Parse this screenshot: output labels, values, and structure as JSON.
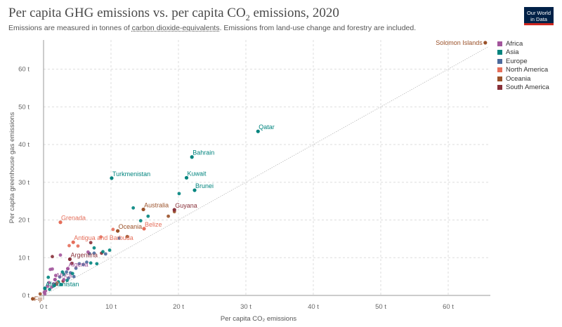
{
  "header": {
    "title_main": "Per capita GHG emissions vs. per capita CO",
    "title_sub": "2",
    "title_tail": " emissions, 2020",
    "subtitle_pre": "Emissions are measured in tonnes of ",
    "subtitle_link": "carbon dioxide-equivalents",
    "subtitle_post": ". Emissions from land-use change and forestry are included.",
    "logo_line1": "Our World",
    "logo_line2": "in Data"
  },
  "colors": {
    "Africa": "#a2559c",
    "Asia": "#00847e",
    "Europe": "#4c6a9c",
    "North America": "#e56e5a",
    "Oceania": "#9a5129",
    "South America": "#883039"
  },
  "legend": [
    "Africa",
    "Asia",
    "Europe",
    "North America",
    "Oceania",
    "South America"
  ],
  "chart_data": {
    "type": "scatter",
    "title": "Per capita GHG emissions vs. per capita CO₂ emissions, 2020",
    "xlabel": "Per capita CO₂ emissions",
    "ylabel": "Per capita greenhouse gas emissions",
    "xlim": [
      0,
      66
    ],
    "ylim": [
      0,
      67
    ],
    "xticks": [
      0,
      10,
      20,
      30,
      40,
      50,
      60
    ],
    "yticks": [
      0,
      10,
      20,
      30,
      40,
      50,
      60
    ],
    "tick_suffix": " t",
    "reference_line": "y = x",
    "labeled_points": [
      {
        "name": "Solomon Islands",
        "region": "Oceania",
        "x": 65.5,
        "y": 67.0
      },
      {
        "name": "Qatar",
        "region": "Asia",
        "x": 31.8,
        "y": 43.5
      },
      {
        "name": "Bahrain",
        "region": "Asia",
        "x": 22.0,
        "y": 36.7
      },
      {
        "name": "Turkmenistan",
        "region": "Asia",
        "x": 10.1,
        "y": 31.1
      },
      {
        "name": "Kuwait",
        "region": "Asia",
        "x": 21.2,
        "y": 31.2
      },
      {
        "name": "Brunei",
        "region": "Asia",
        "x": 22.4,
        "y": 27.9
      },
      {
        "name": "Australia",
        "region": "Oceania",
        "x": 14.8,
        "y": 22.8
      },
      {
        "name": "Guyana",
        "region": "South America",
        "x": 19.4,
        "y": 22.7
      },
      {
        "name": "Grenada",
        "region": "North America",
        "x": 2.5,
        "y": 19.4
      },
      {
        "name": "Belize",
        "region": "North America",
        "x": 14.9,
        "y": 17.7
      },
      {
        "name": "Oceania",
        "region": "Oceania",
        "x": 11.0,
        "y": 17.1
      },
      {
        "name": "Antigua and Barbuda",
        "region": "North America",
        "x": 4.4,
        "y": 14.1
      },
      {
        "name": "Argentina",
        "region": "South America",
        "x": 3.9,
        "y": 9.6
      },
      {
        "name": "Algeria",
        "region": "Africa",
        "x": 3.6,
        "y": 7.1
      },
      {
        "name": "Africa",
        "region": "Africa",
        "x": 1.7,
        "y": 4.2
      },
      {
        "name": "Afghanistan",
        "region": "Asia",
        "x": 0.2,
        "y": 1.9
      },
      {
        "name": "Fiji",
        "region": "Oceania",
        "x": -1.6,
        "y": -0.9
      }
    ],
    "points": [
      {
        "region": "Asia",
        "x": 20.1,
        "y": 27.0
      },
      {
        "region": "Asia",
        "x": 13.3,
        "y": 23.2
      },
      {
        "region": "Asia",
        "x": 15.5,
        "y": 21.0
      },
      {
        "region": "Asia",
        "x": 14.4,
        "y": 19.8
      },
      {
        "region": "Oceania",
        "x": 18.5,
        "y": 21.0
      },
      {
        "region": "Oceania",
        "x": 19.4,
        "y": 22.2
      },
      {
        "region": "Oceania",
        "x": 12.4,
        "y": 15.6
      },
      {
        "region": "North America",
        "x": 10.3,
        "y": 17.5
      },
      {
        "region": "Europe",
        "x": 11.2,
        "y": 15.2
      },
      {
        "region": "Asia",
        "x": 9.8,
        "y": 12.0
      },
      {
        "region": "Asia",
        "x": 7.5,
        "y": 12.6
      },
      {
        "region": "Europe",
        "x": 7.5,
        "y": 11.2
      },
      {
        "region": "South America",
        "x": 8.6,
        "y": 11.2
      },
      {
        "region": "Asia",
        "x": 8.8,
        "y": 11.6
      },
      {
        "region": "Europe",
        "x": 9.2,
        "y": 11.0
      },
      {
        "region": "Europe",
        "x": 6.8,
        "y": 11.1
      },
      {
        "region": "Africa",
        "x": 6.6,
        "y": 11.5
      },
      {
        "region": "North America",
        "x": 3.8,
        "y": 13.2
      },
      {
        "region": "North America",
        "x": 5.1,
        "y": 13.1
      },
      {
        "region": "South America",
        "x": 7.0,
        "y": 14.0
      },
      {
        "region": "North America",
        "x": 8.5,
        "y": 15.5
      },
      {
        "region": "Asia",
        "x": 7.0,
        "y": 8.6
      },
      {
        "region": "Europe",
        "x": 6.4,
        "y": 8.8
      },
      {
        "region": "Europe",
        "x": 5.9,
        "y": 8.2
      },
      {
        "region": "Europe",
        "x": 5.3,
        "y": 8.4
      },
      {
        "region": "Asia",
        "x": 7.9,
        "y": 8.4
      },
      {
        "region": "South America",
        "x": 4.2,
        "y": 8.5
      },
      {
        "region": "Europe",
        "x": 4.8,
        "y": 7.2
      },
      {
        "region": "Africa",
        "x": 2.5,
        "y": 10.7
      },
      {
        "region": "South America",
        "x": 1.3,
        "y": 10.3
      },
      {
        "region": "Africa",
        "x": 1.0,
        "y": 6.9
      },
      {
        "region": "Africa",
        "x": 1.3,
        "y": 7.0
      },
      {
        "region": "Asia",
        "x": 0.7,
        "y": 4.8
      },
      {
        "region": "Africa",
        "x": 1.8,
        "y": 5.3
      },
      {
        "region": "Asia",
        "x": 3.0,
        "y": 5.6
      },
      {
        "region": "Europe",
        "x": 3.4,
        "y": 6.2
      },
      {
        "region": "Europe",
        "x": 4.0,
        "y": 6.0
      },
      {
        "region": "Asia",
        "x": 4.3,
        "y": 5.8
      },
      {
        "region": "Asia",
        "x": 2.2,
        "y": 3.6
      },
      {
        "region": "Africa",
        "x": 1.5,
        "y": 3.1
      },
      {
        "region": "Africa",
        "x": 0.8,
        "y": 3.4
      },
      {
        "region": "Africa",
        "x": 0.6,
        "y": 2.4
      },
      {
        "region": "Africa",
        "x": 0.3,
        "y": 1.2
      },
      {
        "region": "Africa",
        "x": 0.1,
        "y": 0.8
      },
      {
        "region": "Asia",
        "x": 0.9,
        "y": 1.6
      },
      {
        "region": "South America",
        "x": 1.9,
        "y": 3.0
      },
      {
        "region": "South America",
        "x": 2.9,
        "y": 3.8
      },
      {
        "region": "Asia",
        "x": 3.5,
        "y": 4.0
      },
      {
        "region": "Europe",
        "x": 3.7,
        "y": 4.6
      },
      {
        "region": "Europe",
        "x": 4.5,
        "y": 5.0
      },
      {
        "region": "Asia",
        "x": 2.6,
        "y": 2.9
      },
      {
        "region": "Africa",
        "x": 0.2,
        "y": 0.4
      },
      {
        "region": "Oceania",
        "x": -0.5,
        "y": 0.4
      },
      {
        "region": "Africa",
        "x": 1.2,
        "y": 2.2
      },
      {
        "region": "Asia",
        "x": 1.6,
        "y": 2.6
      },
      {
        "region": "North America",
        "x": 2.0,
        "y": 3.3
      },
      {
        "region": "Europe",
        "x": 2.4,
        "y": 4.9
      },
      {
        "region": "Africa",
        "x": 3.0,
        "y": 4.2
      },
      {
        "region": "Asia",
        "x": 2.8,
        "y": 6.2
      }
    ]
  }
}
